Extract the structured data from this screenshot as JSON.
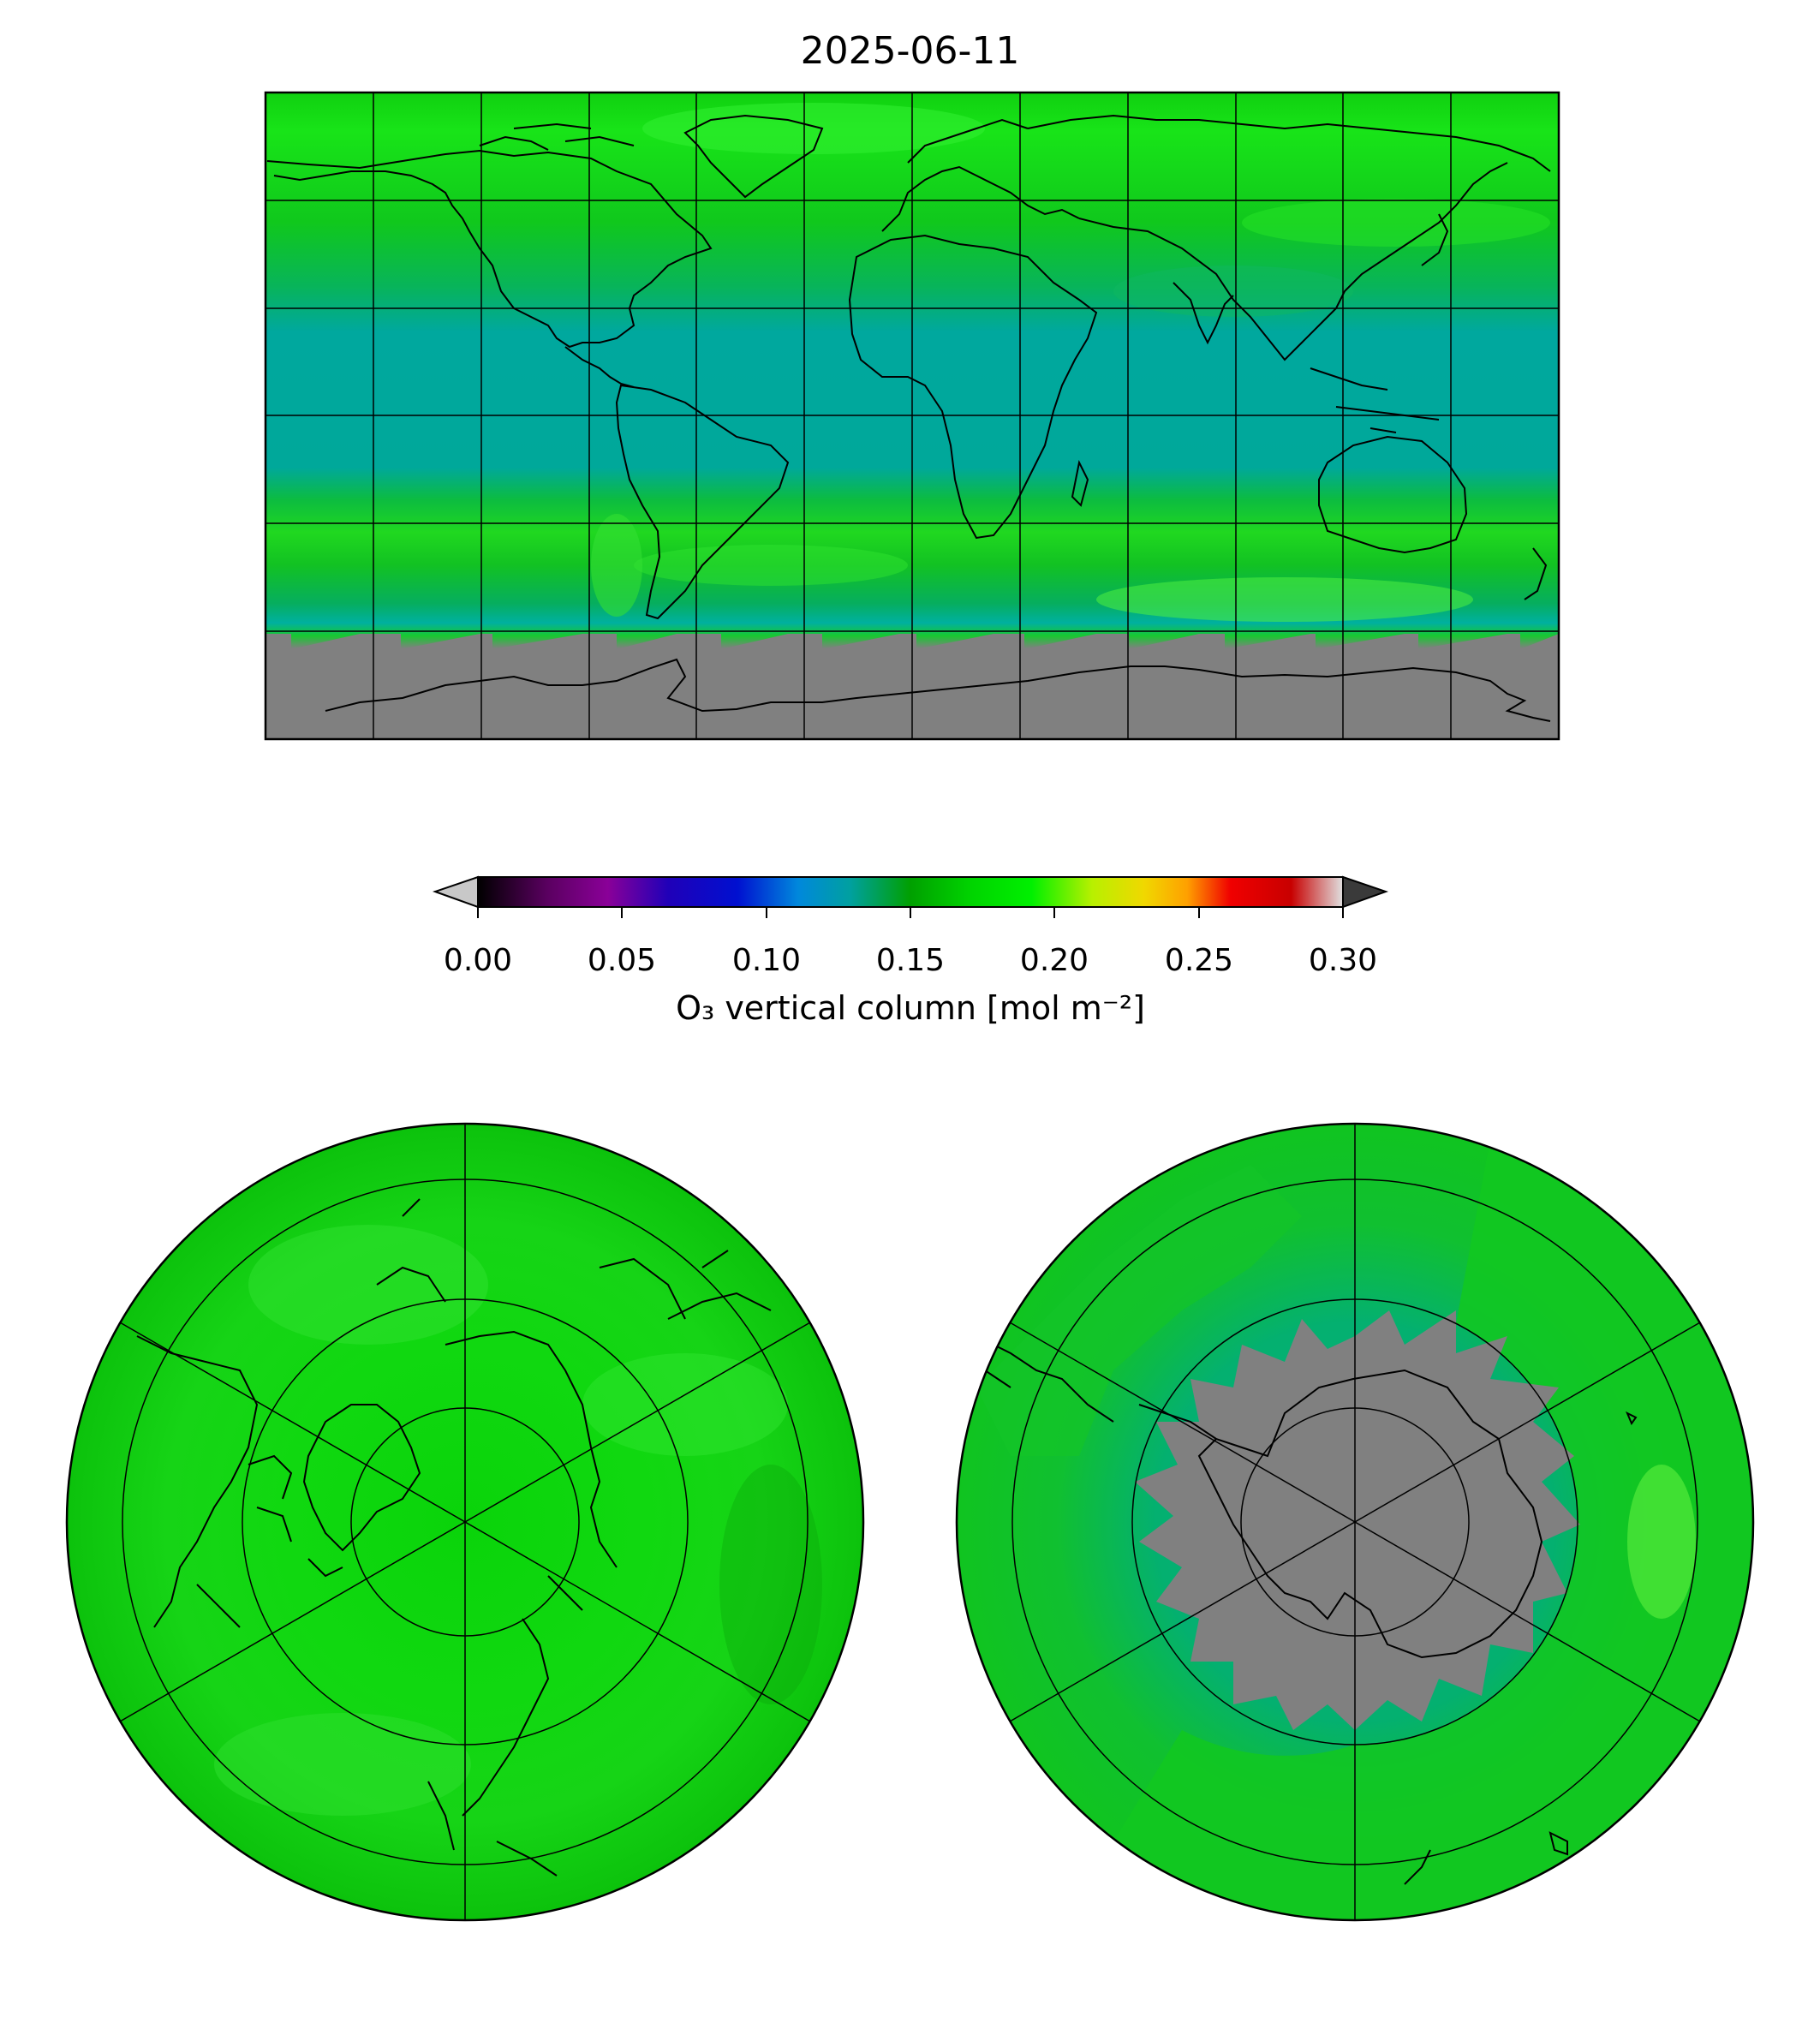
{
  "title": "2025-06-11",
  "colorbar": {
    "label": "O₃ vertical column [mol m⁻²]",
    "ticks": [
      "0.00",
      "0.05",
      "0.10",
      "0.15",
      "0.20",
      "0.25",
      "0.30"
    ],
    "range": [
      0.0,
      0.3
    ],
    "extend": "both",
    "colormap_stops": [
      "#000000",
      "#8a0098",
      "#0000c8",
      "#0090dc",
      "#00a0a0",
      "#00a000",
      "#00ea00",
      "#a0ff00",
      "#f0e000",
      "#ffa000",
      "#ec0000",
      "#c80000",
      "#d0d0d0"
    ],
    "under_color": "#c8c8c8",
    "over_color": "#3a3a3a"
  },
  "maps": {
    "global": {
      "projection": "plate-carree",
      "gridlines": true,
      "no_data_region": "Antarctica"
    },
    "north_polar": {
      "projection": "north-polar-stereographic",
      "gridlines": true
    },
    "south_polar": {
      "projection": "south-polar-stereographic",
      "gridlines": true,
      "no_data_region": "Antarctica"
    }
  },
  "colors": {
    "no_data": "#808080",
    "high_latitude_band": "#00c800",
    "tropics": "#00a89c",
    "bright_band": "#22e000"
  }
}
